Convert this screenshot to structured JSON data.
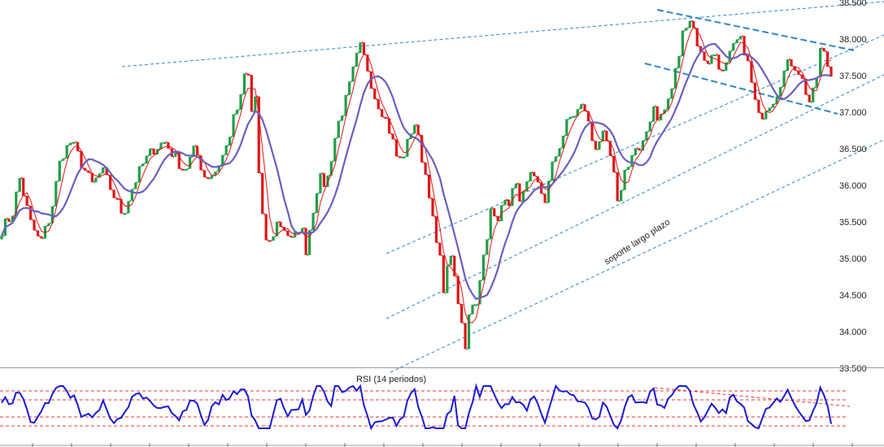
{
  "chart_data": [
    {
      "type": "candlestick",
      "y_ticks": [
        "38.500",
        "38.000",
        "37.500",
        "37.000",
        "36.500",
        "36.000",
        "35.500",
        "35.000",
        "34.500",
        "34.000",
        "33.500"
      ],
      "ylim": [
        33.5,
        38.5
      ],
      "x_count": 230,
      "close_path": [
        [
          0,
          35.4
        ],
        [
          8,
          35.6
        ],
        [
          14,
          36.1
        ],
        [
          22,
          35.5
        ],
        [
          30,
          35.2
        ],
        [
          38,
          35.6
        ],
        [
          46,
          36.4
        ],
        [
          54,
          36.6
        ],
        [
          62,
          36.3
        ],
        [
          70,
          36.0
        ],
        [
          78,
          36.2
        ],
        [
          86,
          35.9
        ],
        [
          94,
          35.6
        ],
        [
          102,
          36.0
        ],
        [
          110,
          36.3
        ],
        [
          118,
          36.5
        ],
        [
          126,
          36.6
        ],
        [
          134,
          36.4
        ],
        [
          142,
          36.2
        ],
        [
          150,
          36.5
        ],
        [
          158,
          36.1
        ],
        [
          166,
          36.2
        ],
        [
          174,
          36.5
        ],
        [
          180,
          36.9
        ],
        [
          186,
          37.2
        ],
        [
          190,
          37.7
        ],
        [
          194,
          37.0
        ],
        [
          198,
          37.3
        ],
        [
          200,
          35.9
        ],
        [
          204,
          35.3
        ],
        [
          208,
          35.2
        ],
        [
          214,
          35.5
        ],
        [
          220,
          35.4
        ],
        [
          226,
          35.2
        ],
        [
          232,
          35.5
        ],
        [
          236,
          35.1
        ],
        [
          242,
          35.7
        ],
        [
          246,
          36.1
        ],
        [
          252,
          36.0
        ],
        [
          258,
          36.6
        ],
        [
          262,
          36.9
        ],
        [
          268,
          37.2
        ],
        [
          272,
          37.5
        ],
        [
          278,
          37.9
        ],
        [
          284,
          37.6
        ],
        [
          290,
          37.2
        ],
        [
          296,
          37.0
        ],
        [
          302,
          36.7
        ],
        [
          308,
          36.3
        ],
        [
          314,
          36.5
        ],
        [
          320,
          36.9
        ],
        [
          326,
          36.4
        ],
        [
          332,
          35.9
        ],
        [
          336,
          35.3
        ],
        [
          340,
          35.0
        ],
        [
          344,
          34.5
        ],
        [
          348,
          35.2
        ],
        [
          352,
          34.6
        ],
        [
          356,
          34.2
        ],
        [
          360,
          33.8
        ],
        [
          364,
          34.5
        ],
        [
          368,
          34.3
        ],
        [
          372,
          34.9
        ],
        [
          376,
          35.1
        ],
        [
          380,
          35.7
        ],
        [
          384,
          35.5
        ],
        [
          388,
          35.8
        ],
        [
          392,
          35.7
        ],
        [
          398,
          36.0
        ],
        [
          404,
          35.8
        ],
        [
          410,
          36.1
        ],
        [
          416,
          36.0
        ],
        [
          422,
          35.8
        ],
        [
          428,
          36.3
        ],
        [
          434,
          36.6
        ],
        [
          440,
          36.9
        ],
        [
          446,
          37.0
        ],
        [
          452,
          37.1
        ],
        [
          456,
          36.8
        ],
        [
          460,
          36.5
        ],
        [
          466,
          36.7
        ],
        [
          470,
          36.5
        ],
        [
          474,
          36.3
        ],
        [
          478,
          35.7
        ],
        [
          482,
          36.1
        ],
        [
          486,
          36.3
        ],
        [
          492,
          36.5
        ],
        [
          496,
          36.4
        ],
        [
          500,
          36.7
        ],
        [
          506,
          37.1
        ],
        [
          510,
          36.9
        ],
        [
          514,
          37.0
        ],
        [
          520,
          37.3
        ],
        [
          526,
          37.8
        ],
        [
          530,
          38.2
        ],
        [
          534,
          38.3
        ],
        [
          538,
          38.1
        ],
        [
          542,
          37.8
        ],
        [
          548,
          37.7
        ],
        [
          554,
          37.8
        ],
        [
          560,
          37.5
        ],
        [
          566,
          37.8
        ],
        [
          572,
          38.0
        ],
        [
          576,
          37.9
        ],
        [
          580,
          37.6
        ],
        [
          584,
          37.2
        ],
        [
          588,
          36.9
        ],
        [
          594,
          37.1
        ],
        [
          600,
          37.2
        ],
        [
          606,
          37.5
        ],
        [
          612,
          37.7
        ],
        [
          618,
          37.6
        ],
        [
          624,
          37.3
        ],
        [
          628,
          37.1
        ],
        [
          632,
          37.4
        ],
        [
          636,
          37.9
        ],
        [
          640,
          37.7
        ],
        [
          644,
          37.5
        ]
      ],
      "annotations": [
        {
          "text": "soporte largo plazo",
          "value": 35.1
        }
      ]
    },
    {
      "type": "line",
      "title": "RSI (14 periodos)"
    }
  ]
}
